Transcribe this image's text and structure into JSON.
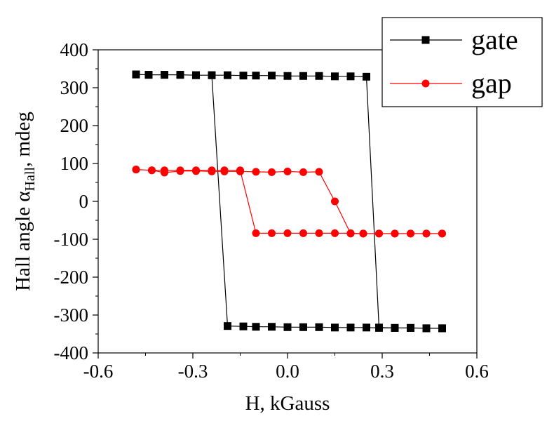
{
  "chart_data": {
    "type": "line",
    "xlabel": "H, kGauss",
    "ylabel_main": "Hall angle α",
    "ylabel_sub": "Hall",
    "ylabel_tail": ", mdeg",
    "xlim": [
      -0.6,
      0.6
    ],
    "ylim": [
      -400,
      400
    ],
    "x_ticks": [
      -0.6,
      -0.3,
      0.0,
      0.3,
      0.6
    ],
    "x_tick_labels": [
      "-0.6",
      "-0.3",
      "0.0",
      "0.3",
      "0.6"
    ],
    "y_ticks": [
      400,
      300,
      200,
      100,
      0,
      -100,
      -200,
      -300,
      -400
    ],
    "y_tick_labels": [
      "400",
      "300",
      "200",
      "100",
      "0",
      "-100",
      "-200",
      "-300",
      "-400"
    ],
    "grid": false,
    "legend_position": "top-right",
    "series": [
      {
        "name": "gate",
        "color": "#000000",
        "marker": "square",
        "x": [
          -0.48,
          -0.44,
          -0.39,
          -0.34,
          -0.29,
          -0.24,
          -0.19,
          -0.14,
          -0.1,
          -0.05,
          0.0,
          0.05,
          0.1,
          0.15,
          0.2,
          0.25,
          0.29,
          0.34,
          0.39,
          0.44,
          0.49,
          0.49,
          0.44,
          0.39,
          0.34,
          0.29,
          0.25,
          0.2,
          0.15,
          0.1,
          0.05,
          0.0,
          -0.05,
          -0.1,
          -0.14,
          -0.19,
          -0.24,
          -0.29,
          -0.34,
          -0.39,
          -0.44,
          -0.48
        ],
        "y": [
          335,
          334,
          334,
          334,
          333,
          333,
          333,
          332,
          332,
          332,
          331,
          331,
          331,
          330,
          330,
          329,
          -333,
          -334,
          -334,
          -335,
          -335,
          -335,
          -335,
          -334,
          -334,
          -334,
          -333,
          -333,
          -333,
          -332,
          -332,
          -332,
          -331,
          -331,
          -330,
          -329,
          333,
          333,
          334,
          334,
          334,
          335
        ]
      },
      {
        "name": "gap",
        "color": "#ff0000",
        "marker": "circle",
        "x": [
          -0.48,
          -0.43,
          -0.39,
          -0.34,
          -0.29,
          -0.24,
          -0.2,
          -0.15,
          -0.1,
          -0.05,
          0.0,
          0.05,
          0.1,
          0.15,
          0.2,
          0.24,
          0.29,
          0.34,
          0.39,
          0.44,
          0.49,
          0.49,
          0.44,
          0.39,
          0.34,
          0.29,
          0.24,
          0.2,
          0.15,
          0.1,
          0.05,
          0.0,
          -0.05,
          -0.1,
          -0.15,
          -0.2,
          -0.24,
          -0.29,
          -0.34,
          -0.39,
          -0.43,
          -0.48
        ],
        "y": [
          84,
          82,
          76,
          80,
          80,
          79,
          79,
          79,
          78,
          77,
          79,
          77,
          78,
          0,
          -85,
          -85,
          -85,
          -85,
          -85,
          -85,
          -85,
          -85,
          -85,
          -85,
          -85,
          -85,
          -85,
          -84,
          -84,
          -84,
          -84,
          -84,
          -84,
          -84,
          82,
          82,
          82,
          82,
          82,
          82,
          82,
          84
        ]
      }
    ]
  }
}
